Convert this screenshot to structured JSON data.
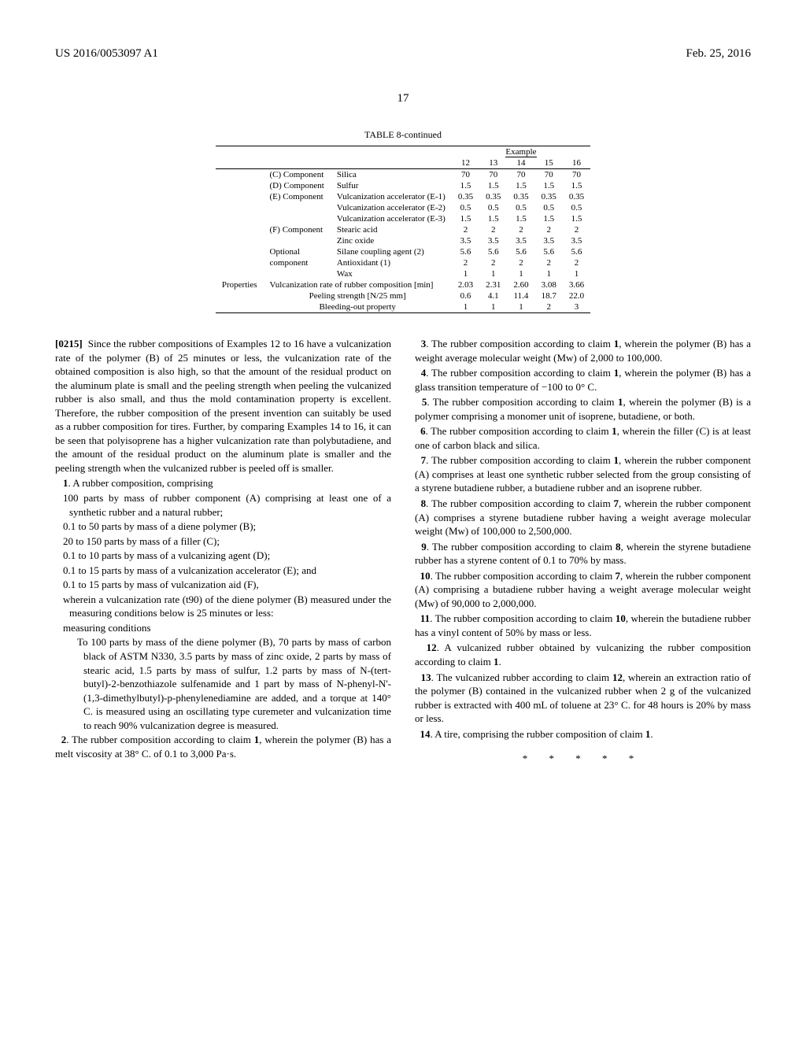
{
  "header": {
    "pub_number": "US 2016/0053097 A1",
    "pub_date": "Feb. 25, 2016",
    "page_number": "17"
  },
  "table": {
    "caption": "TABLE 8-continued",
    "example_label": "Example",
    "col_nums": [
      "12",
      "13",
      "14",
      "15",
      "16"
    ],
    "rows": [
      {
        "cat": "",
        "comp": "(C) Component",
        "name": "Silica",
        "vals": [
          "70",
          "70",
          "70",
          "70",
          "70"
        ]
      },
      {
        "cat": "",
        "comp": "(D) Component",
        "name": "Sulfur",
        "vals": [
          "1.5",
          "1.5",
          "1.5",
          "1.5",
          "1.5"
        ]
      },
      {
        "cat": "",
        "comp": "(E) Component",
        "name": "Vulcanization accelerator (E-1)",
        "vals": [
          "0.35",
          "0.35",
          "0.35",
          "0.35",
          "0.35"
        ]
      },
      {
        "cat": "",
        "comp": "",
        "name": "Vulcanization accelerator (E-2)",
        "vals": [
          "0.5",
          "0.5",
          "0.5",
          "0.5",
          "0.5"
        ]
      },
      {
        "cat": "",
        "comp": "",
        "name": "Vulcanization accelerator (E-3)",
        "vals": [
          "1.5",
          "1.5",
          "1.5",
          "1.5",
          "1.5"
        ]
      },
      {
        "cat": "",
        "comp": "(F) Component",
        "name": "Stearic acid",
        "vals": [
          "2",
          "2",
          "2",
          "2",
          "2"
        ]
      },
      {
        "cat": "",
        "comp": "",
        "name": "Zinc oxide",
        "vals": [
          "3.5",
          "3.5",
          "3.5",
          "3.5",
          "3.5"
        ]
      },
      {
        "cat": "",
        "comp": "Optional",
        "name": "Silane coupling agent (2)",
        "vals": [
          "5.6",
          "5.6",
          "5.6",
          "5.6",
          "5.6"
        ]
      },
      {
        "cat": "",
        "comp": "component",
        "name": "Antioxidant (1)",
        "vals": [
          "2",
          "2",
          "2",
          "2",
          "2"
        ]
      },
      {
        "cat": "",
        "comp": "",
        "name": "Wax",
        "vals": [
          "1",
          "1",
          "1",
          "1",
          "1"
        ]
      },
      {
        "cat": "Properties",
        "comp": "",
        "name": "Vulcanization rate of rubber composition [min]",
        "vals": [
          "2.03",
          "2.31",
          "2.60",
          "3.08",
          "3.66"
        ],
        "namespan": true
      },
      {
        "cat": "",
        "comp": "",
        "name": "Peeling strength [N/25 mm]",
        "vals": [
          "0.6",
          "4.1",
          "11.4",
          "18.7",
          "22.0"
        ],
        "namespan": true,
        "center": true
      },
      {
        "cat": "",
        "comp": "",
        "name": "Bleeding-out property",
        "vals": [
          "1",
          "1",
          "1",
          "2",
          "3"
        ],
        "namespan": true,
        "center": true
      }
    ]
  },
  "body": {
    "para0215_num": "[0215]",
    "para0215": "Since the rubber compositions of Examples 12 to 16 have a vulcanization rate of the polymer (B) of 25 minutes or less, the vulcanization rate of the obtained composition is also high, so that the amount of the residual product on the aluminum plate is small and the peeling strength when peeling the vulcanized rubber is also small, and thus the mold contamination property is excellent. Therefore, the rubber composition of the present invention can suitably be used as a rubber composition for tires. Further, by comparing Examples 14 to 16, it can be seen that polyisoprene has a higher vulcanization rate than polybutadiene, and the amount of the residual product on the aluminum plate is smaller and the peeling strength when the vulcanized rubber is peeled off is smaller.",
    "claims": {
      "c1": {
        "num": "1",
        "lead": ". A rubber composition, comprising",
        "items": [
          "100 parts by mass of rubber component (A) comprising at least one of a synthetic rubber and a natural rubber;",
          "0.1 to 50 parts by mass of a diene polymer (B);",
          "20 to 150 parts by mass of a filler (C);",
          "0.1 to 10 parts by mass of a vulcanizing agent (D);",
          "0.1 to 15 parts by mass of a vulcanization accelerator (E); and",
          "0.1 to 15 parts by mass of vulcanization aid (F),",
          "wherein a vulcanization rate (t90) of the diene polymer (B) measured under the measuring conditions below is 25 minutes or less:",
          "measuring conditions"
        ],
        "sub": "To 100 parts by mass of the diene polymer (B), 70 parts by mass of carbon black of ASTM N330, 3.5 parts by mass of zinc oxide, 2 parts by mass of stearic acid, 1.5 parts by mass of sulfur, 1.2 parts by mass of N-(tert-butyl)-2-benzothiazole sulfenamide and 1 part by mass of N-phenyl-N'-(1,3-dimethylbutyl)-p-phenylenediamine are added, and a torque at 140° C. is measured using an oscillating type curemeter and vulcanization time to reach 90% vulcanization degree is measured."
      },
      "c2": {
        "num": "2",
        "text": ". The rubber composition according to claim ",
        "ref": "1",
        "tail": ", wherein the polymer (B) has a melt viscosity at 38° C. of 0.1 to 3,000 Pa·s."
      },
      "c3": {
        "num": "3",
        "text": ". The rubber composition according to claim ",
        "ref": "1",
        "tail": ", wherein the polymer (B) has a weight average molecular weight (Mw) of 2,000 to 100,000."
      },
      "c4": {
        "num": "4",
        "text": ". The rubber composition according to claim ",
        "ref": "1",
        "tail": ", wherein the polymer (B) has a glass transition temperature of −100 to 0° C."
      },
      "c5": {
        "num": "5",
        "text": ". The rubber composition according to claim ",
        "ref": "1",
        "tail": ", wherein the polymer (B) is a polymer comprising a monomer unit of isoprene, butadiene, or both."
      },
      "c6": {
        "num": "6",
        "text": ". The rubber composition according to claim ",
        "ref": "1",
        "tail": ", wherein the filler (C) is at least one of carbon black and silica."
      },
      "c7": {
        "num": "7",
        "text": ". The rubber composition according to claim ",
        "ref": "1",
        "tail": ", wherein the rubber component (A) comprises at least one synthetic rubber selected from the group consisting of a styrene butadiene rubber, a butadiene rubber and an isoprene rubber."
      },
      "c8": {
        "num": "8",
        "text": ". The rubber composition according to claim ",
        "ref": "7",
        "tail": ", wherein the rubber component (A) comprises a styrene butadiene rubber having a weight average molecular weight (Mw) of 100,000 to 2,500,000."
      },
      "c9": {
        "num": "9",
        "text": ". The rubber composition according to claim ",
        "ref": "8",
        "tail": ", wherein the styrene butadiene rubber has a styrene content of 0.1 to 70% by mass."
      },
      "c10": {
        "num": "10",
        "text": ". The rubber composition according to claim ",
        "ref": "7",
        "tail": ", wherein the rubber component (A) comprising a butadiene rubber having a weight average molecular weight (Mw) of 90,000 to 2,000,000."
      },
      "c11": {
        "num": "11",
        "text": ". The rubber composition according to claim ",
        "ref": "10",
        "tail": ", wherein the butadiene rubber has a vinyl content of 50% by mass or less."
      },
      "c12": {
        "num": "12",
        "text": ". A vulcanized rubber obtained by vulcanizing the rubber composition according to claim ",
        "ref": "1",
        "tail": "."
      },
      "c13": {
        "num": "13",
        "text": ". The vulcanized rubber according to claim ",
        "ref": "12",
        "tail": ", wherein an extraction ratio of the polymer (B) contained in the vulcanized rubber when 2 g of the vulcanized rubber is extracted with 400 mL of toluene at 23° C. for 48 hours is 20% by mass or less."
      },
      "c14": {
        "num": "14",
        "text": ". A tire, comprising the rubber composition of claim ",
        "ref": "1",
        "tail": "."
      }
    },
    "stars": "* * * * *"
  }
}
